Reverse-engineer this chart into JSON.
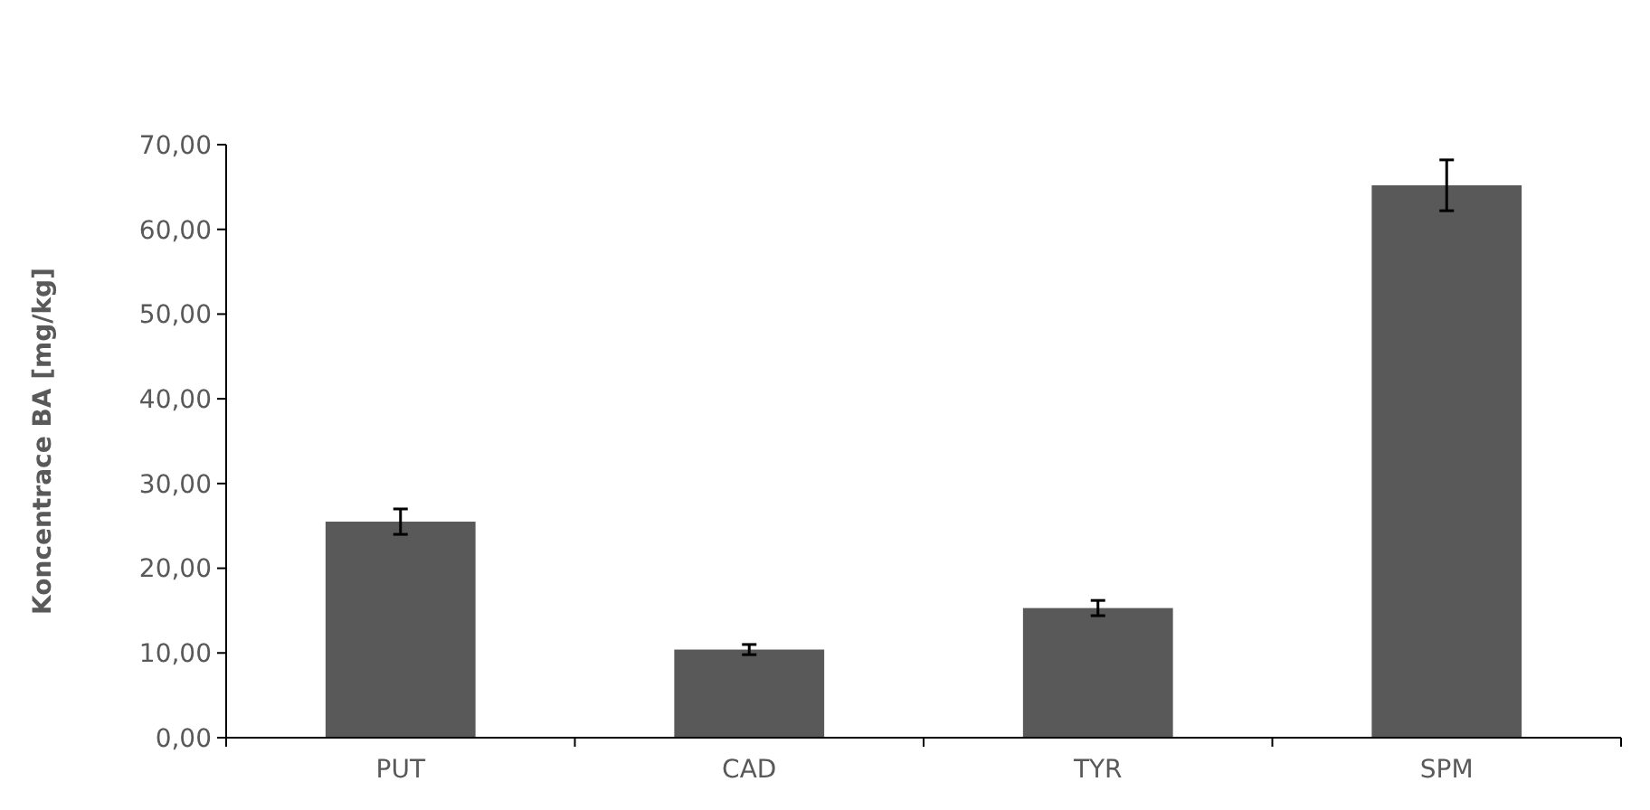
{
  "chart_data": {
    "type": "bar",
    "ylabel": "Koncentrace BA [mg/kg]",
    "categories": [
      "PUT",
      "CAD",
      "TYR",
      "SPM"
    ],
    "values": [
      25.5,
      10.4,
      15.3,
      65.2
    ],
    "color": "#595959",
    "errors": [
      1.5,
      0.6,
      0.9,
      3.0
    ],
    "ylim": [
      0,
      70
    ],
    "yticks": [
      {
        "value": 0,
        "label": "0,00"
      },
      {
        "value": 10,
        "label": "10,00"
      },
      {
        "value": 20,
        "label": "20,00"
      },
      {
        "value": 30,
        "label": "30,00"
      },
      {
        "value": 40,
        "label": "40,00"
      },
      {
        "value": 50,
        "label": "50,00"
      },
      {
        "value": 60,
        "label": "60,00"
      },
      {
        "value": 70,
        "label": "70,00"
      }
    ],
    "grid": false
  }
}
